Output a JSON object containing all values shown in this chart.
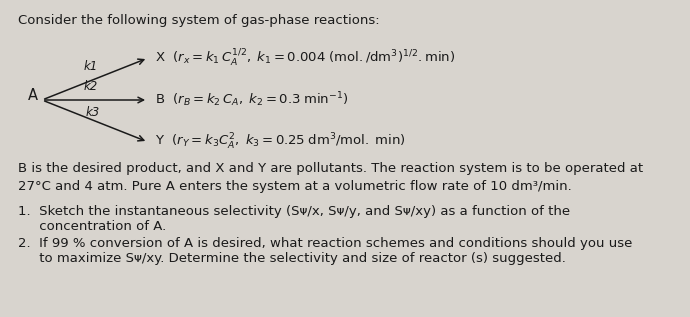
{
  "background_color": "#d8d4ce",
  "text_color": "#1a1a1a",
  "title": "Consider the following system of gas-phase reactions:",
  "fs": 9.5,
  "fs_small": 8.5,
  "A_label": "A",
  "k1": "k1",
  "k2": "k2",
  "k3": "k3",
  "rxn_x": "X  $(r_x = k_1\\,C_A^{1/2},\\; k_1 = 0.004\\;\\mathrm{(mol./dm^3)^{1/2}.min})$",
  "rxn_b": "B  $(r_B = k_2\\,C_A,\\; k_2 = 0.3\\;\\mathrm{min^{-1}})$",
  "rxn_y": "Y  $(r_Y = k_3 C_A^2,\\; k_3 = 0.25\\;\\mathrm{dm^3/mol.\\;min})$",
  "para": "B is the desired product, and X and Y are pollutants. The reaction system is to be operated at\n27°C and 4 atm. Pure A enters the system at a volumetric flow rate of 10 dm³/min.",
  "item1a": "1.  Sketch the instantaneous selectivity (Sᴪ/x, Sᴪ/y, and Sᴪ/xy) as a function of the",
  "item1b": "     concentration of A.",
  "item2a": "2.  If 99 % conversion of A is desired, what reaction schemes and conditions should you use",
  "item2b": "     to maximize Sᴪ/xy. Determine the selectivity and size of reactor (s) suggested."
}
